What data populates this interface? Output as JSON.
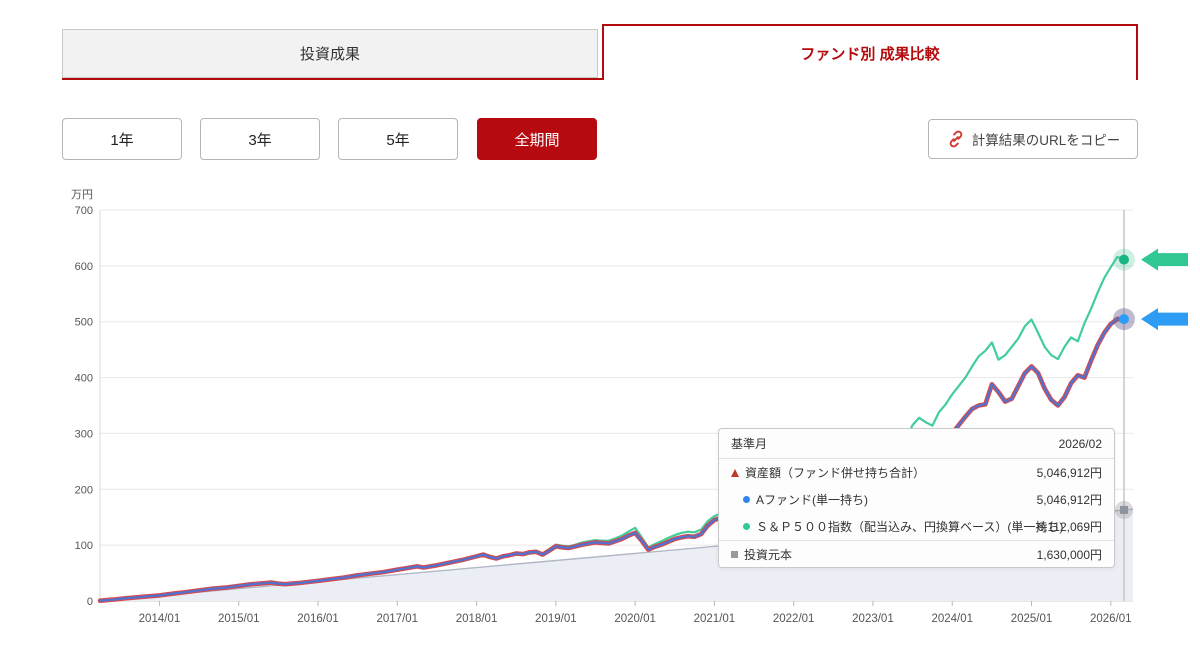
{
  "accent": {
    "red": "#b30b0e",
    "button_red": "#b70a10",
    "link_red": "#d2372f"
  },
  "tabs": [
    {
      "label": "投資成果",
      "active": false
    },
    {
      "label": "ファンド別 成果比較",
      "active": true
    }
  ],
  "period_buttons": [
    {
      "label": "1年",
      "active": false
    },
    {
      "label": "3年",
      "active": false
    },
    {
      "label": "5年",
      "active": false
    },
    {
      "label": "全期間",
      "active": true
    }
  ],
  "copy_button": {
    "label": "計算結果のURLをコピー",
    "icon": "link-icon"
  },
  "chart_data": {
    "type": "line",
    "unit_label": "万円",
    "ylim": [
      0,
      700
    ],
    "y_ticks": [
      0,
      100,
      200,
      300,
      400,
      500,
      600,
      700
    ],
    "grid": true,
    "x_start_month": "2013/04",
    "x_end_month": "2026/02",
    "months_total": 155,
    "x_tick_labels": [
      "2014/01",
      "2015/01",
      "2016/01",
      "2017/01",
      "2018/01",
      "2019/01",
      "2020/01",
      "2021/01",
      "2022/01",
      "2023/01",
      "2024/01",
      "2025/01",
      "2026/01"
    ],
    "x_tick_month_offsets": [
      9,
      21,
      33,
      45,
      57,
      69,
      81,
      93,
      105,
      117,
      129,
      141,
      153
    ],
    "series": [
      {
        "name": "資産額（ファンド併せ持ち合計）",
        "type": "line",
        "color": "#d64a4e",
        "width": 4.6,
        "end_value_yen": "5,046,912円",
        "points": [
          [
            0,
            0.5
          ],
          [
            2,
            2.5
          ],
          [
            4,
            5
          ],
          [
            6,
            7
          ],
          [
            9,
            10
          ],
          [
            11,
            13
          ],
          [
            13,
            16
          ],
          [
            15,
            19
          ],
          [
            17,
            22
          ],
          [
            19,
            24
          ],
          [
            21,
            27
          ],
          [
            23,
            30
          ],
          [
            26,
            33
          ],
          [
            27,
            31
          ],
          [
            28,
            30
          ],
          [
            30,
            32
          ],
          [
            33,
            36
          ],
          [
            35,
            39
          ],
          [
            37,
            42
          ],
          [
            39,
            46
          ],
          [
            41,
            49
          ],
          [
            43,
            52
          ],
          [
            45,
            56
          ],
          [
            47,
            60
          ],
          [
            48,
            62
          ],
          [
            49,
            60
          ],
          [
            51,
            64
          ],
          [
            53,
            69
          ],
          [
            55,
            74
          ],
          [
            57,
            80
          ],
          [
            58,
            83
          ],
          [
            59,
            79
          ],
          [
            60,
            76
          ],
          [
            61,
            80
          ],
          [
            62,
            82
          ],
          [
            63,
            85
          ],
          [
            64,
            84
          ],
          [
            65,
            87
          ],
          [
            66,
            88
          ],
          [
            67,
            83
          ],
          [
            68,
            90
          ],
          [
            69,
            98
          ],
          [
            70,
            96
          ],
          [
            71,
            95
          ],
          [
            72,
            98
          ],
          [
            73,
            101
          ],
          [
            74,
            103
          ],
          [
            75,
            105
          ],
          [
            76,
            104
          ],
          [
            77,
            103
          ],
          [
            78,
            107
          ],
          [
            79,
            111
          ],
          [
            80,
            117
          ],
          [
            81,
            122
          ],
          [
            82,
            108
          ],
          [
            83,
            92
          ],
          [
            84,
            97
          ],
          [
            85,
            101
          ],
          [
            86,
            106
          ],
          [
            87,
            111
          ],
          [
            88,
            114
          ],
          [
            89,
            116
          ],
          [
            90,
            115
          ],
          [
            91,
            120
          ],
          [
            92,
            135
          ],
          [
            93,
            145
          ],
          [
            94,
            149
          ],
          [
            95,
            153
          ],
          [
            96,
            160
          ],
          [
            97,
            157
          ],
          [
            98,
            153
          ],
          [
            100,
            163
          ],
          [
            102,
            158
          ],
          [
            104,
            172
          ],
          [
            106,
            163
          ],
          [
            108,
            156
          ],
          [
            110,
            150
          ],
          [
            112,
            157
          ],
          [
            114,
            161
          ],
          [
            116,
            166
          ],
          [
            118,
            185
          ],
          [
            120,
            215
          ],
          [
            121,
            225
          ],
          [
            122,
            240
          ],
          [
            123,
            250
          ],
          [
            124,
            265
          ],
          [
            125,
            262
          ],
          [
            126,
            258
          ],
          [
            127,
            270
          ],
          [
            128,
            285
          ],
          [
            129,
            300
          ],
          [
            130,
            315
          ],
          [
            131,
            330
          ],
          [
            132,
            344
          ],
          [
            133,
            350
          ],
          [
            134,
            352
          ],
          [
            135,
            388
          ],
          [
            136,
            374
          ],
          [
            137,
            357
          ],
          [
            138,
            362
          ],
          [
            139,
            385
          ],
          [
            140,
            408
          ],
          [
            141,
            420
          ],
          [
            142,
            408
          ],
          [
            143,
            380
          ],
          [
            144,
            360
          ],
          [
            145,
            350
          ],
          [
            146,
            365
          ],
          [
            147,
            390
          ],
          [
            148,
            404
          ],
          [
            149,
            400
          ],
          [
            150,
            430
          ],
          [
            151,
            458
          ],
          [
            152,
            480
          ],
          [
            153,
            496
          ],
          [
            154,
            505
          ],
          [
            155,
            504.7
          ]
        ]
      },
      {
        "name": "Aファンド(単一持ち)",
        "type": "line",
        "color": "#5272cf",
        "width": 2.3,
        "end_value_yen": "5,046,912円",
        "points_same_as": 0
      },
      {
        "name": "Ｓ＆Ｐ５００指数（配当込み、円換算ベース）(単一持ち)",
        "type": "line",
        "color": "#42cd9c",
        "width": 2.2,
        "end_value_yen": "6,112,069円",
        "points": [
          [
            0,
            0.5
          ],
          [
            2,
            2.5
          ],
          [
            4,
            5
          ],
          [
            6,
            7
          ],
          [
            9,
            10
          ],
          [
            11,
            13
          ],
          [
            13,
            16
          ],
          [
            15,
            19
          ],
          [
            17,
            22
          ],
          [
            19,
            24
          ],
          [
            21,
            27
          ],
          [
            23,
            30
          ],
          [
            26,
            33
          ],
          [
            27,
            31
          ],
          [
            28,
            30
          ],
          [
            30,
            32
          ],
          [
            33,
            36
          ],
          [
            35,
            39
          ],
          [
            37,
            42
          ],
          [
            39,
            46
          ],
          [
            41,
            49
          ],
          [
            43,
            52
          ],
          [
            45,
            56
          ],
          [
            47,
            60
          ],
          [
            48,
            62
          ],
          [
            49,
            60
          ],
          [
            51,
            64
          ],
          [
            53,
            69
          ],
          [
            55,
            74
          ],
          [
            57,
            80
          ],
          [
            58,
            84
          ],
          [
            59,
            80
          ],
          [
            60,
            77
          ],
          [
            61,
            81
          ],
          [
            62,
            83
          ],
          [
            63,
            86
          ],
          [
            64,
            85
          ],
          [
            65,
            88
          ],
          [
            66,
            90
          ],
          [
            67,
            85
          ],
          [
            68,
            93
          ],
          [
            69,
            101
          ],
          [
            70,
            99
          ],
          [
            71,
            98
          ],
          [
            72,
            101
          ],
          [
            73,
            105
          ],
          [
            74,
            107
          ],
          [
            75,
            109
          ],
          [
            76,
            108
          ],
          [
            77,
            108
          ],
          [
            78,
            112
          ],
          [
            79,
            117
          ],
          [
            80,
            124
          ],
          [
            81,
            131
          ],
          [
            82,
            114
          ],
          [
            83,
            96
          ],
          [
            84,
            102
          ],
          [
            85,
            107
          ],
          [
            86,
            113
          ],
          [
            87,
            118
          ],
          [
            88,
            122
          ],
          [
            89,
            124
          ],
          [
            90,
            123
          ],
          [
            91,
            128
          ],
          [
            92,
            143
          ],
          [
            93,
            152
          ],
          [
            94,
            157
          ],
          [
            95,
            162
          ],
          [
            96,
            168
          ],
          [
            97,
            166
          ],
          [
            98,
            162
          ],
          [
            100,
            172
          ],
          [
            102,
            168
          ],
          [
            104,
            185
          ],
          [
            106,
            176
          ],
          [
            108,
            170
          ],
          [
            110,
            165
          ],
          [
            112,
            172
          ],
          [
            114,
            178
          ],
          [
            116,
            184
          ],
          [
            118,
            205
          ],
          [
            120,
            240
          ],
          [
            121,
            265
          ],
          [
            122,
            290
          ],
          [
            123,
            315
          ],
          [
            124,
            328
          ],
          [
            125,
            320
          ],
          [
            126,
            314
          ],
          [
            127,
            338
          ],
          [
            128,
            352
          ],
          [
            129,
            370
          ],
          [
            130,
            385
          ],
          [
            131,
            400
          ],
          [
            132,
            420
          ],
          [
            133,
            438
          ],
          [
            134,
            448
          ],
          [
            135,
            463
          ],
          [
            136,
            432
          ],
          [
            137,
            440
          ],
          [
            138,
            455
          ],
          [
            139,
            470
          ],
          [
            140,
            492
          ],
          [
            141,
            504
          ],
          [
            142,
            480
          ],
          [
            143,
            455
          ],
          [
            144,
            440
          ],
          [
            145,
            433
          ],
          [
            146,
            455
          ],
          [
            147,
            472
          ],
          [
            148,
            465
          ],
          [
            149,
            497
          ],
          [
            150,
            523
          ],
          [
            151,
            552
          ],
          [
            152,
            578
          ],
          [
            153,
            598
          ],
          [
            154,
            616
          ],
          [
            155,
            611.2
          ]
        ]
      },
      {
        "name": "投資元本",
        "type": "area",
        "color": "#b3b8c6",
        "fill": "#eceef5",
        "width": 1.4,
        "end_value_yen": "1,630,000円",
        "points": [
          [
            0,
            0
          ],
          [
            155,
            163
          ]
        ]
      }
    ],
    "hover": {
      "month": "2026/02",
      "month_offset": 155,
      "crosshair_color": "#c6c6c6",
      "markers": [
        {
          "series": 2,
          "shape": "circle",
          "color": "#17b584",
          "halo": "rgba(80,200,150,0.28)"
        },
        {
          "series": 1,
          "shape": "circle",
          "color": "#2a9df4",
          "halo": "rgba(115,105,150,0.45)"
        },
        {
          "series": 3,
          "shape": "square",
          "color": "#8d939e",
          "halo": "rgba(150,150,155,0.35)"
        }
      ]
    },
    "arrows": [
      {
        "name": "green-arrow",
        "color": "#31c792",
        "points_at_value": 611.2
      },
      {
        "name": "blue-arrow",
        "color": "#2d9cf2",
        "points_at_value": 504.7
      }
    ]
  },
  "tooltip": {
    "header": {
      "label": "基準月",
      "value": "2026/02"
    },
    "rows": [
      {
        "marker": "triangle",
        "marker_color": "#c0392b",
        "label": "資産額（ファンド併せ持ち合計）",
        "value": "5,046,912円",
        "indent": false,
        "sep": false
      },
      {
        "marker": "circle",
        "marker_color": "#2e86ed",
        "label": "Aファンド(単一持ち)",
        "value": "5,046,912円",
        "indent": true,
        "sep": false
      },
      {
        "marker": "circle",
        "marker_color": "#2ecc92",
        "label": "Ｓ＆Ｐ５００指数（配当込み、円換算ベース）(単一持ち)",
        "value": "6,112,069円",
        "indent": true,
        "sep": false
      },
      {
        "marker": "square",
        "marker_color": "#999999",
        "label": "投資元本",
        "value": "1,630,000円",
        "indent": false,
        "sep": true
      }
    ]
  }
}
